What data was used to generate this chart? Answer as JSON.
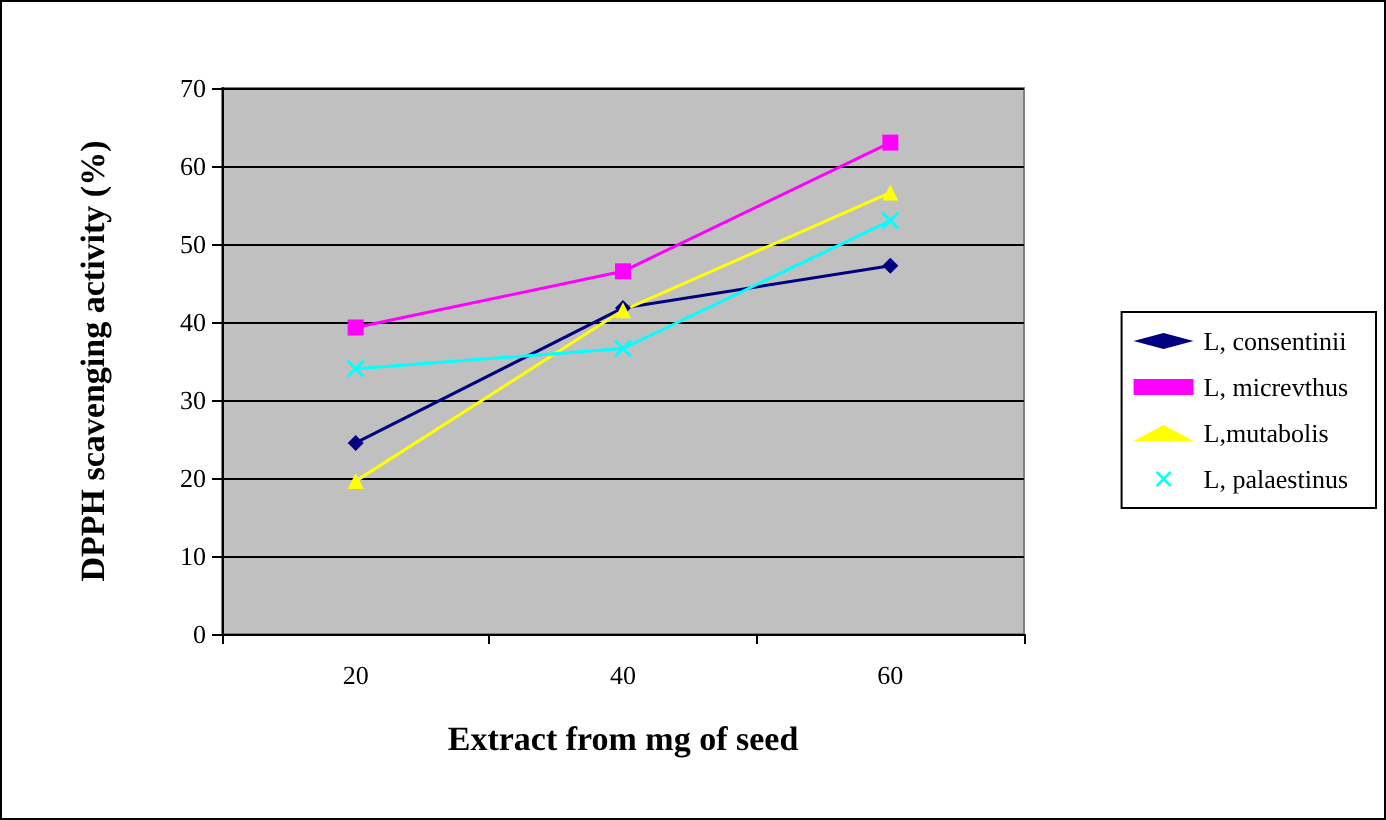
{
  "chart_data": {
    "type": "line",
    "xlabel": "Extract from mg of seed",
    "ylabel": "DPPH scavenging activity (%)",
    "categories": [
      "20",
      "40",
      "60"
    ],
    "series": [
      {
        "name": "L, consentinii",
        "color": "#000080",
        "marker": "diamond",
        "values": [
          24.5,
          41.8,
          47.2
        ]
      },
      {
        "name": "L, micrevthus",
        "color": "#ff00ff",
        "marker": "square",
        "values": [
          39.3,
          46.5,
          63
        ]
      },
      {
        "name": "L,mutabolis",
        "color": "#ffff00",
        "marker": "triangle",
        "values": [
          19.6,
          41.5,
          56.6
        ]
      },
      {
        "name": "L, palaestinus",
        "color": "#00ffff",
        "marker": "cross",
        "values": [
          34,
          36.6,
          53
        ]
      }
    ],
    "ylim": [
      0,
      70
    ],
    "yticks": [
      0,
      10,
      20,
      30,
      40,
      50,
      60,
      70
    ],
    "grid": "y",
    "legend": "right"
  }
}
